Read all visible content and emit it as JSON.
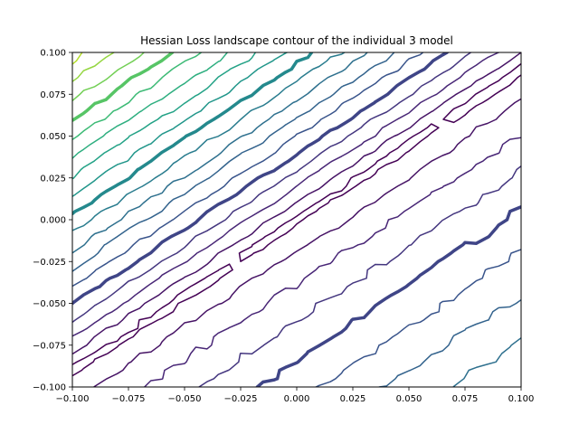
{
  "chart_data": {
    "type": "contour",
    "title": "Hessian Loss landscape contour of the individual 3 model",
    "xlabel": "",
    "ylabel": "",
    "xlim": [
      -0.1,
      0.1
    ],
    "ylim": [
      -0.1,
      0.1
    ],
    "x_ticks": [
      -0.1,
      -0.075,
      -0.05,
      -0.025,
      0.0,
      0.025,
      0.05,
      0.075,
      0.1
    ],
    "x_tick_labels": [
      "−0.100",
      "−0.075",
      "−0.050",
      "−0.025",
      "0.000",
      "0.025",
      "0.050",
      "0.075",
      "0.100"
    ],
    "y_ticks": [
      -0.1,
      -0.075,
      -0.05,
      -0.025,
      0.0,
      0.025,
      0.05,
      0.075,
      0.1
    ],
    "y_tick_labels": [
      "−0.100",
      "−0.075",
      "−0.050",
      "−0.025",
      "0.000",
      "0.025",
      "0.050",
      "0.075",
      "0.100"
    ],
    "grid": false,
    "colormap": "viridis",
    "colormap_stops": [
      "#440154",
      "#482878",
      "#3e4989",
      "#31688e",
      "#26828e",
      "#1f9e89",
      "#35b779",
      "#6ece58",
      "#b5de2b"
    ],
    "valley_slope": 0.9,
    "valley_intercept": 0.0
  }
}
